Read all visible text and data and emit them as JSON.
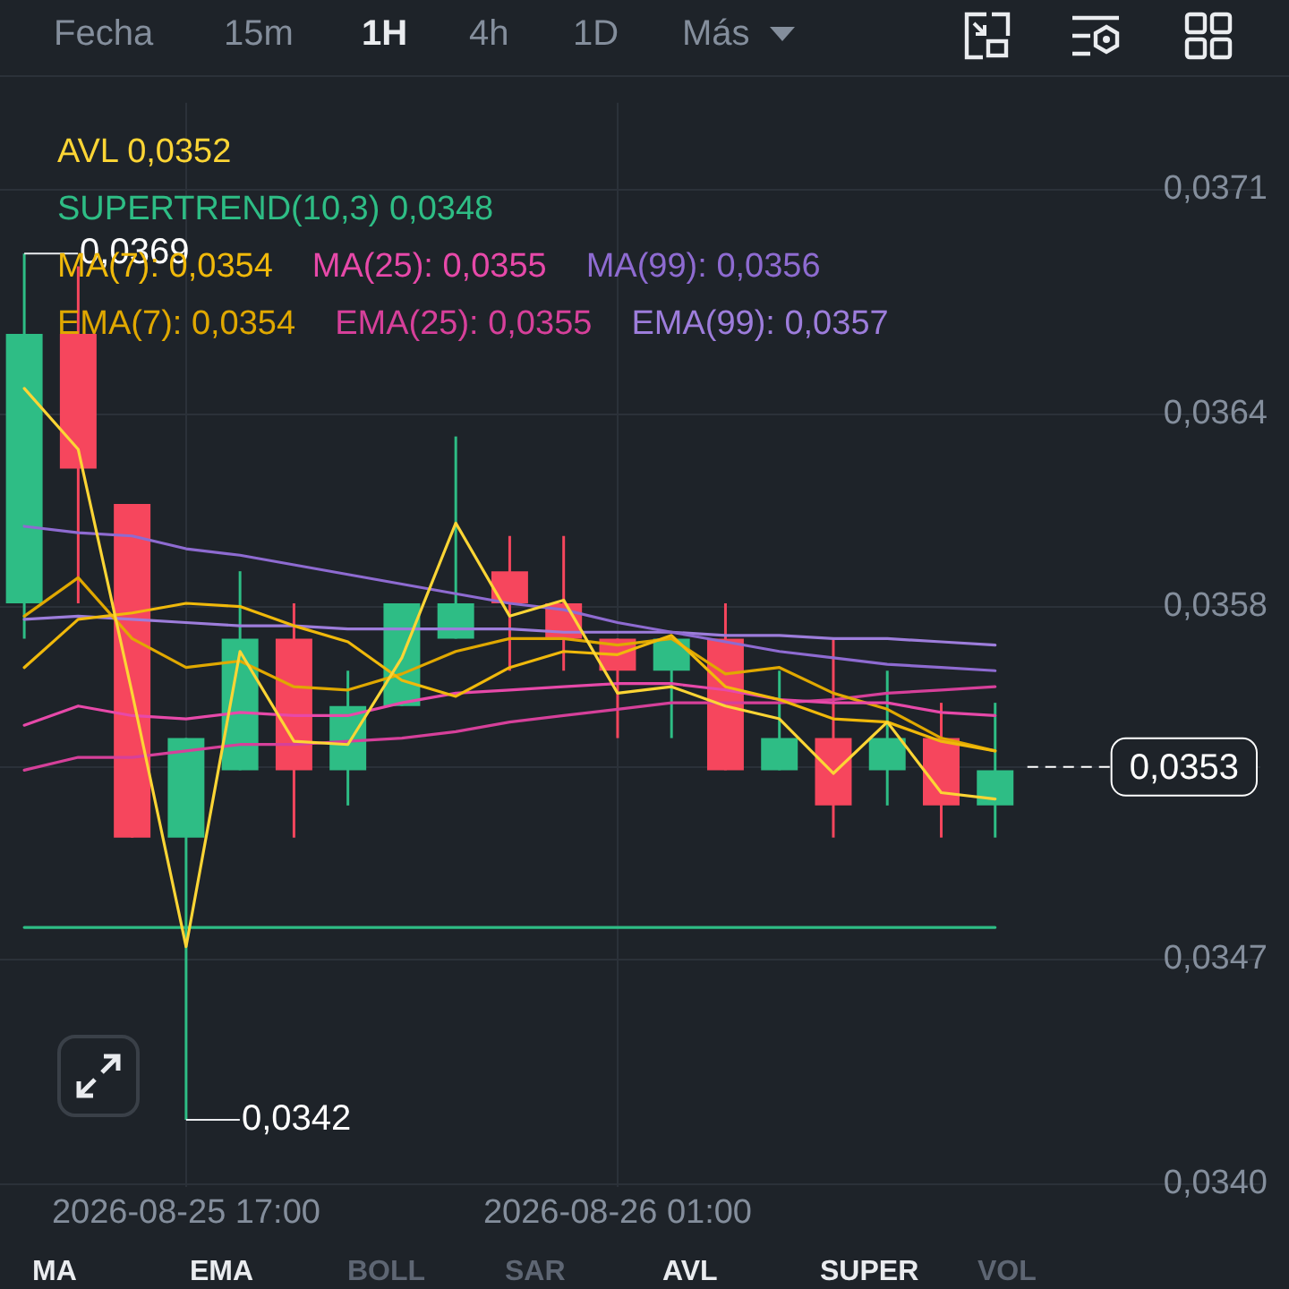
{
  "chart_data": {
    "type": "candlestick",
    "x": [
      "2026-08-25T14:00",
      "2026-08-25T15:00",
      "2026-08-25T16:00",
      "2026-08-25T17:00",
      "2026-08-25T18:00",
      "2026-08-25T19:00",
      "2026-08-25T20:00",
      "2026-08-25T21:00",
      "2026-08-25T22:00",
      "2026-08-25T23:00",
      "2026-08-26T00:00",
      "2026-08-26T01:00",
      "2026-08-26T02:00",
      "2026-08-26T03:00",
      "2026-08-26T04:00",
      "2026-08-26T05:00",
      "2026-08-26T06:00",
      "2026-08-26T07:00",
      "2026-08-26T08:00"
    ],
    "xlim": [
      "2026-08-25T13:33",
      "2026-08-26T12:55"
    ],
    "xticks": [
      {
        "value": "2026-08-25T17:00",
        "label": "2026-08-25 17:00"
      },
      {
        "value": "2026-08-26T01:00",
        "label": "2026-08-26 01:00"
      }
    ],
    "ylim": [
      0.03399,
      0.03737
    ],
    "yticks": [
      {
        "value": 0.034,
        "label": "0,0340"
      },
      {
        "value": 0.0347,
        "label": "0,0347"
      },
      {
        "value": 0.0353,
        "label": null
      },
      {
        "value": 0.0358,
        "label": "0,0358"
      },
      {
        "value": 0.0364,
        "label": "0,0364"
      },
      {
        "value": 0.0371,
        "label": "0,0371"
      }
    ],
    "grid": true,
    "legend": "top left",
    "marker": "none",
    "series": [
      {
        "ohlc": [
          [
            0.03581,
            0.0369,
            0.0357,
            0.03665
          ],
          [
            0.03665,
            0.03686,
            0.03581,
            0.03623
          ],
          [
            0.03612,
            0.03612,
            0.03508,
            0.03508
          ],
          [
            0.03508,
            0.03539,
            0.0342,
            0.03539
          ],
          [
            0.03529,
            0.03591,
            0.03529,
            0.0357
          ],
          [
            0.0357,
            0.03581,
            0.03508,
            0.03529
          ],
          [
            0.03529,
            0.0356,
            0.03518,
            0.03549
          ],
          [
            0.03549,
            0.03581,
            0.03549,
            0.03581
          ],
          [
            0.0357,
            0.03633,
            0.0357,
            0.03581
          ],
          [
            0.03591,
            0.03602,
            0.0356,
            0.03581
          ],
          [
            0.03581,
            0.03602,
            0.0356,
            0.0357
          ],
          [
            0.0357,
            0.0357,
            0.03539,
            0.0356
          ],
          [
            0.0356,
            0.0357,
            0.03539,
            0.0357
          ],
          [
            0.0357,
            0.03581,
            0.03529,
            0.03529
          ],
          [
            0.03529,
            0.0356,
            0.03529,
            0.03539
          ],
          [
            0.03539,
            0.0357,
            0.03508,
            0.03518
          ],
          [
            0.03529,
            0.0356,
            0.03518,
            0.03539
          ],
          [
            0.03539,
            0.0355,
            0.03508,
            0.03518
          ],
          [
            0.03518,
            0.0355,
            0.03508,
            0.03529
          ]
        ],
        "colors": [
          "#2ebd85",
          "#f6465d",
          "#f6465d",
          "#2ebd85",
          "#2ebd85",
          "#f6465d",
          "#2ebd85",
          "#2ebd85",
          "#2ebd85",
          "#f6465d",
          "#f6465d",
          "#f6465d",
          "#2ebd85",
          "#f6465d",
          "#2ebd85",
          "#f6465d",
          "#2ebd85",
          "#f6465d",
          "#2ebd85"
        ]
      },
      {
        "type": "line",
        "name": "AVL 0,0352",
        "color": "#fcd535",
        "values": [
          0.03648,
          0.03629,
          0.03553,
          0.03474,
          0.03566,
          0.03538,
          0.03537,
          0.03564,
          0.03606,
          0.03577,
          0.03582,
          0.03553,
          0.03555,
          0.03549,
          0.03545,
          0.03528,
          0.03544,
          0.03522,
          0.0352
        ]
      },
      {
        "type": "line",
        "name": "SUPERTREND(10,3) 0,0348",
        "color": "#2ebd85",
        "values": [
          0.0348,
          0.0348,
          0.0348,
          0.0348,
          0.0348,
          0.0348,
          0.0348,
          0.0348,
          0.0348,
          0.0348,
          0.0348,
          0.0348,
          0.0348,
          0.0348,
          0.0348,
          0.0348,
          0.0348,
          0.0348,
          0.0348
        ]
      },
      {
        "type": "line",
        "name": "MA(7): 0,0354",
        "color": "#f0b90b",
        "values": [
          0.03561,
          0.03576,
          0.03578,
          0.03581,
          0.0358,
          0.03574,
          0.03569,
          0.03557,
          0.03552,
          0.03561,
          0.03566,
          0.03565,
          0.03571,
          0.03555,
          0.03551,
          0.03545,
          0.03544,
          0.03538,
          0.03535
        ]
      },
      {
        "type": "line",
        "name": "MA(25): 0,0355",
        "color": "#e749a9",
        "values": [
          0.03543,
          0.03549,
          0.03546,
          0.03545,
          0.03547,
          0.03546,
          0.03546,
          0.0355,
          0.03553,
          0.03554,
          0.03555,
          0.03556,
          0.03556,
          0.03554,
          0.03551,
          0.0355,
          0.0355,
          0.03547,
          0.03546
        ]
      },
      {
        "type": "line",
        "name": "MA(99): 0,0356",
        "color": "#8e6bd1",
        "values": [
          0.03605,
          0.03603,
          0.03602,
          0.03598,
          0.03596,
          0.03593,
          0.0359,
          0.03587,
          0.03584,
          0.03581,
          0.03579,
          0.03575,
          0.03572,
          0.03569,
          0.03566,
          0.03564,
          0.03562,
          0.03561,
          0.0356
        ]
      },
      {
        "type": "line",
        "name": "EMA(7): 0,0354",
        "color": "#e0a800",
        "values": [
          0.03577,
          0.03589,
          0.0357,
          0.03561,
          0.03563,
          0.03555,
          0.03554,
          0.03559,
          0.03566,
          0.0357,
          0.0357,
          0.03568,
          0.0357,
          0.03559,
          0.03561,
          0.03553,
          0.03548,
          0.03539,
          0.03535
        ]
      },
      {
        "type": "line",
        "name": "EMA(25): 0,0355",
        "color": "#d6409a",
        "values": [
          0.03529,
          0.03533,
          0.03533,
          0.03535,
          0.03537,
          0.03537,
          0.03538,
          0.03539,
          0.03541,
          0.03544,
          0.03546,
          0.03548,
          0.0355,
          0.0355,
          0.0355,
          0.03551,
          0.03553,
          0.03554,
          0.03555
        ]
      },
      {
        "type": "line",
        "name": "EMA(99): 0,0357",
        "color": "#9d7ddb",
        "values": [
          0.03576,
          0.03577,
          0.03576,
          0.03575,
          0.03574,
          0.03574,
          0.03573,
          0.03573,
          0.03573,
          0.03573,
          0.03572,
          0.03572,
          0.03572,
          0.03571,
          0.03571,
          0.0357,
          0.0357,
          0.03569,
          0.03568
        ]
      }
    ],
    "ref_lines": [
      {
        "axis": "y",
        "value": 0.0353,
        "label": "0,0353",
        "color": "#ffffff",
        "line_style": "dashed"
      }
    ],
    "annotations": [
      "Fecha",
      "15m",
      "1H",
      "4h",
      "1D",
      "Más",
      "MA",
      "EMA",
      "BOLL",
      "SAR",
      "AVL",
      "SUPER",
      "VOL",
      {
        "text": "0,0369",
        "x": "2026-08-25T14:00",
        "y": 0.0369
      },
      {
        "text": "0,0342",
        "x": "2026-08-25T17:00",
        "y": 0.0342
      }
    ]
  }
}
